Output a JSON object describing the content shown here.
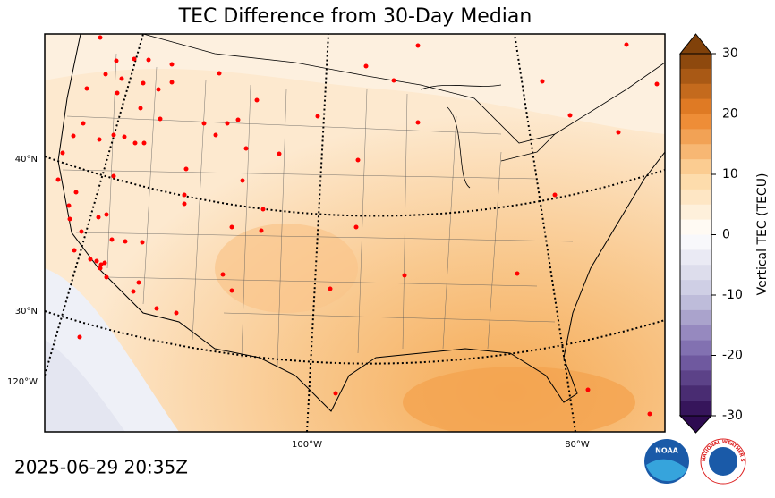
{
  "title": "TEC Difference from 30-Day Median",
  "graticule_labels": {
    "lat": [
      "40°N",
      "30°N"
    ],
    "lon_left": "120°W",
    "lon_bottom": [
      "100°W",
      "80°W"
    ]
  },
  "colorbar": {
    "label": "Vertical TEC (TECU)",
    "lim": [
      -30,
      30
    ],
    "ticks": [
      30,
      20,
      10,
      0,
      -10,
      -20,
      -30
    ]
  },
  "timestamp": "2025-06-29 20:35Z",
  "logos": {
    "noaa": "NOAA",
    "nws": "NATIONAL WEATHER SERVICE"
  }
}
